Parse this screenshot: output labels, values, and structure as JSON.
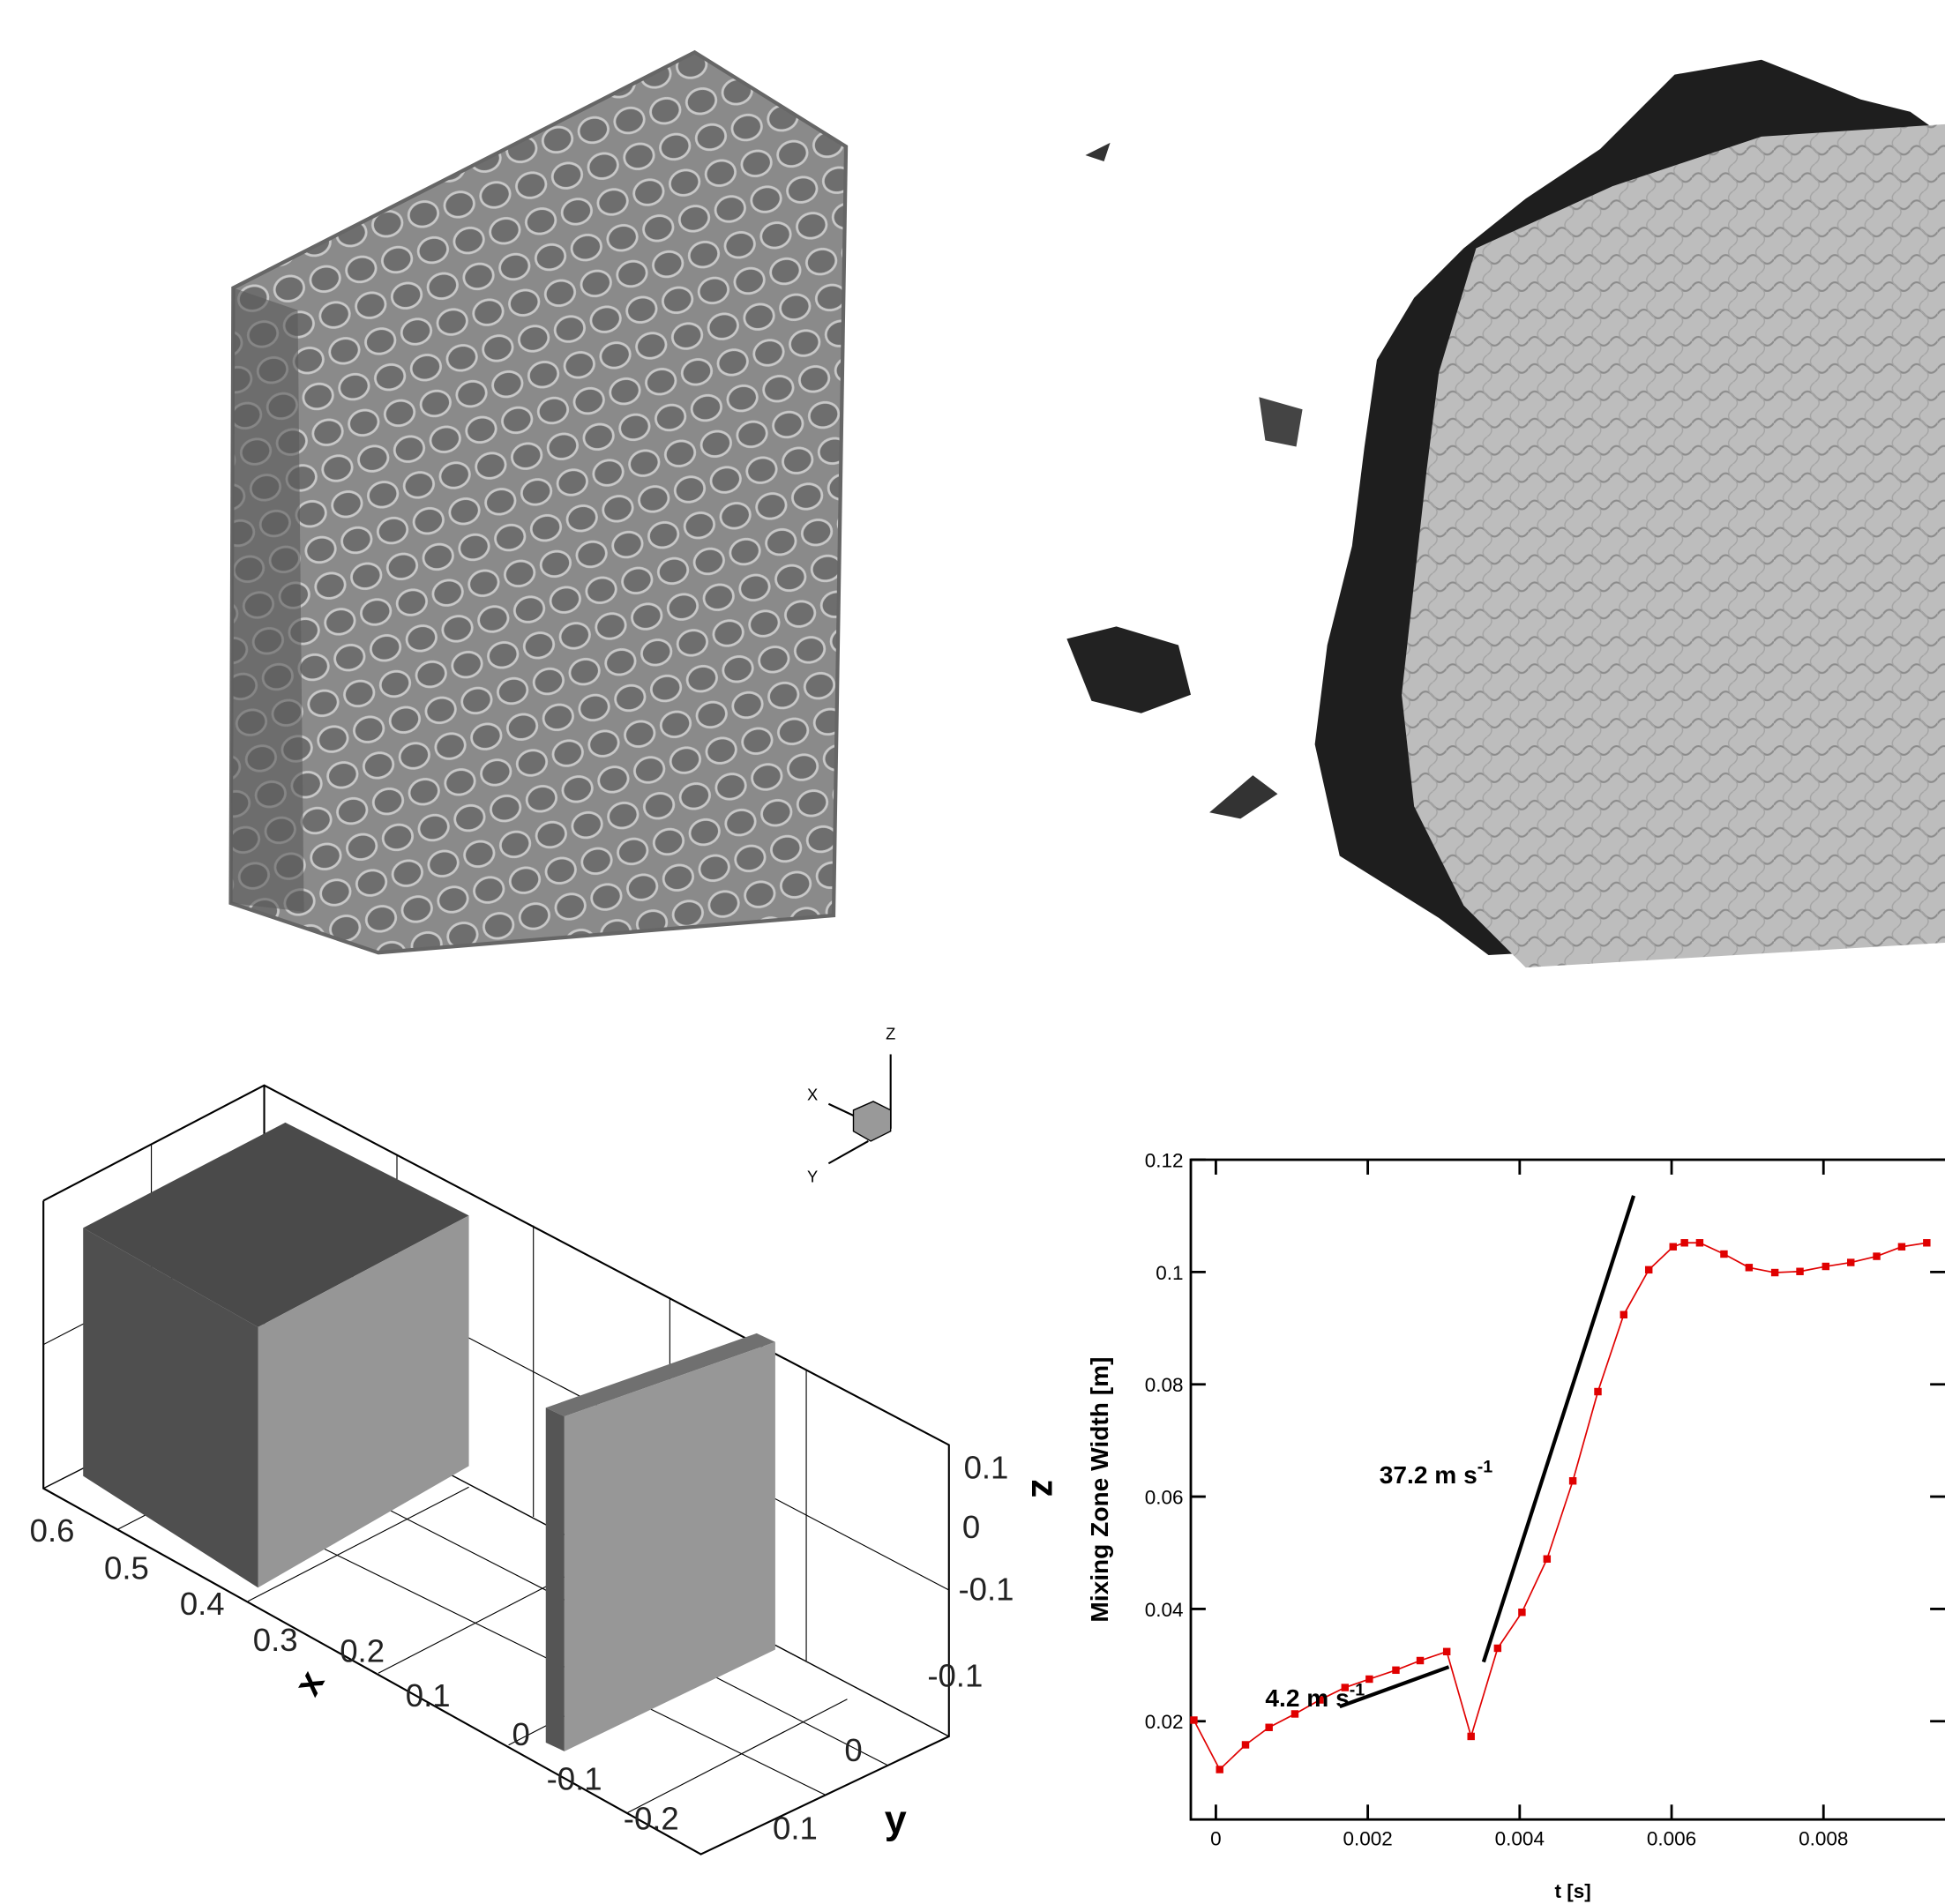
{
  "chart_data": [
    {
      "type": "box3d",
      "xlabel": "x",
      "ylabel": "y",
      "zlabel": "z",
      "xticks": [
        0.6,
        0.5,
        0.4,
        0.3,
        0.2,
        0.1,
        0,
        -0.1,
        -0.2
      ],
      "yticks": [
        -0.1,
        0,
        0.1
      ],
      "zticks": [
        0.1,
        0,
        -0.1
      ],
      "triad": [
        "Z",
        "X",
        "Y"
      ]
    },
    {
      "type": "line",
      "xlabel": "t [s]",
      "ylabel": "Mixing Zone Width [m]",
      "x": [
        -0.00029,
        5e-05,
        0.00039,
        0.0007,
        0.00104,
        0.00137,
        0.0017,
        0.00202,
        0.00237,
        0.00269,
        0.00304,
        0.00336,
        0.00371,
        0.00403,
        0.00436,
        0.0047,
        0.00503,
        0.00537,
        0.0057,
        0.00602,
        0.00617,
        0.00637,
        0.00669,
        0.00702,
        0.00736,
        0.00769,
        0.00803,
        0.00836,
        0.0087,
        0.00903,
        0.00936
      ],
      "values": [
        0.0202,
        0.0114,
        0.0158,
        0.0189,
        0.0213,
        0.0238,
        0.026,
        0.0275,
        0.0291,
        0.0308,
        0.0324,
        0.0173,
        0.033,
        0.0394,
        0.0489,
        0.0628,
        0.0787,
        0.0924,
        0.1004,
        0.1045,
        0.1052,
        0.1052,
        0.1032,
        0.1008,
        0.0999,
        0.1001,
        0.101,
        0.1017,
        0.1028,
        0.1045,
        0.1052
      ],
      "color": "#e00000",
      "xlim": [
        -0.00033,
        0.0096
      ],
      "ylim": [
        0.0025,
        0.12
      ],
      "xticks": [
        0,
        0.002,
        0.004,
        0.006,
        0.008
      ],
      "yticks": [
        0.02,
        0.04,
        0.06,
        0.08,
        0.1,
        0.12
      ],
      "annotations": [
        {
          "text": "4.2 m s",
          "sup": "-1"
        },
        {
          "text": "37.2 m s",
          "sup": "-1"
        }
      ]
    }
  ]
}
